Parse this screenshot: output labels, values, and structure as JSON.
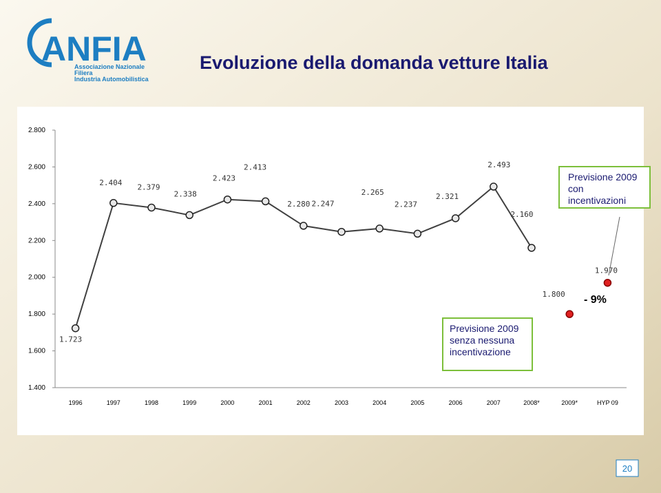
{
  "header": {
    "logo": "ANFIA",
    "logo_subtitle": [
      "Associazione Nazionale",
      "Filiera",
      "Industria Automobilistica"
    ]
  },
  "page_number": "20",
  "chart_data": {
    "type": "line",
    "title": "Evoluzione della domanda vetture Italia",
    "categories": [
      "1996",
      "1997",
      "1998",
      "1999",
      "2000",
      "2001",
      "2002",
      "2003",
      "2004",
      "2005",
      "2006",
      "2007",
      "2008*",
      "2009*",
      "HYP 09"
    ],
    "series": [
      {
        "color": "#404040",
        "values": [
          1723,
          2404,
          2379,
          2338,
          2423,
          2413,
          2280,
          2247,
          2265,
          2237,
          2321,
          2493,
          2160,
          null,
          null
        ],
        "value_labels": [
          "1.723",
          "2.404",
          "2.379",
          "2.338",
          "2.423",
          "2.413",
          "2.280",
          "2.247",
          "2.265",
          "2.237",
          "2.321",
          "2.493",
          "2.160",
          null,
          null
        ]
      },
      {
        "color": "#e02020",
        "values": [
          null,
          null,
          null,
          null,
          null,
          null,
          null,
          null,
          null,
          null,
          null,
          null,
          null,
          1800,
          1970
        ],
        "value_labels": [
          null,
          null,
          null,
          null,
          null,
          null,
          null,
          null,
          null,
          null,
          null,
          null,
          null,
          "1.800",
          "1.970"
        ]
      }
    ],
    "ylim": [
      1400,
      2800
    ],
    "yticks": [
      {
        "value": 1400,
        "label": "1.400"
      },
      {
        "value": 1600,
        "label": "1.600"
      },
      {
        "value": 1800,
        "label": "1.800"
      },
      {
        "value": 2000,
        "label": "2.000"
      },
      {
        "value": 2200,
        "label": "2.200"
      },
      {
        "value": 2400,
        "label": "2.400"
      },
      {
        "value": 2600,
        "label": "2.600"
      },
      {
        "value": 2800,
        "label": "2.800"
      }
    ],
    "annotations": [
      "Previsione 2009 con incentivazioni",
      "Previsione 2009 senza nessuna incentivazione",
      "- 9%"
    ]
  }
}
